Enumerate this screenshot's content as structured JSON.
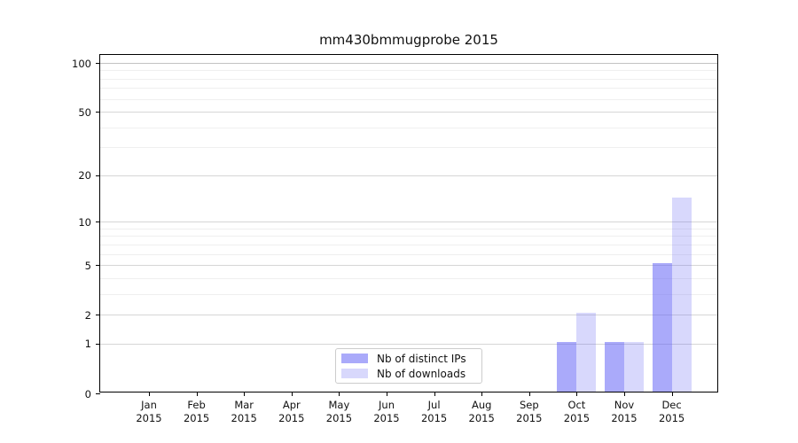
{
  "figure": {
    "background": "#ffffff",
    "text_color": "#111111"
  },
  "chart_data": {
    "type": "bar",
    "title": "mm430bmmugprobe 2015",
    "categories": [
      {
        "month": "Jan",
        "year": "2015"
      },
      {
        "month": "Feb",
        "year": "2015"
      },
      {
        "month": "Mar",
        "year": "2015"
      },
      {
        "month": "Apr",
        "year": "2015"
      },
      {
        "month": "May",
        "year": "2015"
      },
      {
        "month": "Jun",
        "year": "2015"
      },
      {
        "month": "Jul",
        "year": "2015"
      },
      {
        "month": "Aug",
        "year": "2015"
      },
      {
        "month": "Sep",
        "year": "2015"
      },
      {
        "month": "Oct",
        "year": "2015"
      },
      {
        "month": "Nov",
        "year": "2015"
      },
      {
        "month": "Dec",
        "year": "2015"
      }
    ],
    "series": [
      {
        "name": "Nb of distinct IPs",
        "color": "rgba(100,100,245,0.55)",
        "values": [
          0,
          0,
          0,
          0,
          0,
          0,
          0,
          0,
          0,
          1,
          1,
          5
        ]
      },
      {
        "name": "Nb of downloads",
        "color": "rgba(100,100,245,0.25)",
        "values": [
          0,
          0,
          0,
          0,
          0,
          0,
          0,
          0,
          0,
          2,
          1,
          14
        ]
      }
    ],
    "y_axis": {
      "scale": "log10(1+value)",
      "ticks": [
        0,
        1,
        2,
        5,
        10,
        20,
        50,
        100
      ],
      "minor_ticks": [
        3,
        4,
        6,
        7,
        8,
        9,
        30,
        40,
        60,
        70,
        80,
        90
      ],
      "max": 100
    },
    "xlabel": "",
    "ylabel": "",
    "grid": "horizontal",
    "legend_position": "lower center",
    "colors": {
      "major_grid": "#d6d6d6",
      "top_major_grid": "#c2c2c2",
      "minor_grid": "#efefef",
      "spine": "#000000"
    }
  }
}
